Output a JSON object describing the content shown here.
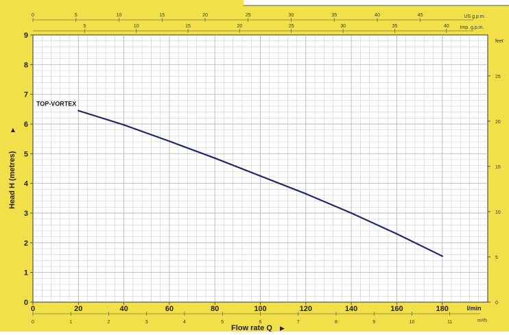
{
  "chart_data": {
    "type": "line",
    "title": "",
    "xlabel": "Flow rate Q",
    "xlabel_arrow": "▶",
    "ylabel": "Head H (metres)",
    "ylabel_arrow": "▶",
    "grid": true,
    "background_color": "#f2e04a",
    "plot_color": "#ffffff",
    "grid_color": "#b8b8b8",
    "line_color": "#1d2a66",
    "xlim": [
      0,
      200
    ],
    "ylim": [
      0,
      9
    ],
    "x_unit_label": "l/min",
    "x_ticks": [
      "0",
      "20",
      "40",
      "60",
      "80",
      "100",
      "120",
      "140",
      "160",
      "180"
    ],
    "y_ticks": [
      "0",
      "1",
      "2",
      "3",
      "4",
      "5",
      "6",
      "7",
      "8",
      "9"
    ],
    "x2_unit_label": "m³/h",
    "x2_ticks": [
      "0",
      "1",
      "2",
      "3",
      "4",
      "5",
      "6",
      "7",
      "8",
      "9",
      "10",
      "11"
    ],
    "top_us_label": "US g.p.m.",
    "top_us_ticks": [
      "0",
      "5",
      "10",
      "15",
      "20",
      "25",
      "30",
      "35",
      "40",
      "45"
    ],
    "top_imp_label": "Imp. g.p.m.",
    "top_imp_ticks": [
      "5",
      "10",
      "15",
      "20",
      "25",
      "30",
      "35",
      "40"
    ],
    "right_unit_label": "feet",
    "right_ticks": [
      "0",
      "5",
      "10",
      "15",
      "20",
      "25"
    ],
    "series": [
      {
        "name": "TOP-VORTEX",
        "x": [
          20,
          40,
          60,
          80,
          100,
          120,
          140,
          160,
          180
        ],
        "y": [
          6.45,
          5.97,
          5.42,
          4.85,
          4.25,
          3.65,
          3.0,
          2.3,
          1.55
        ]
      }
    ]
  }
}
